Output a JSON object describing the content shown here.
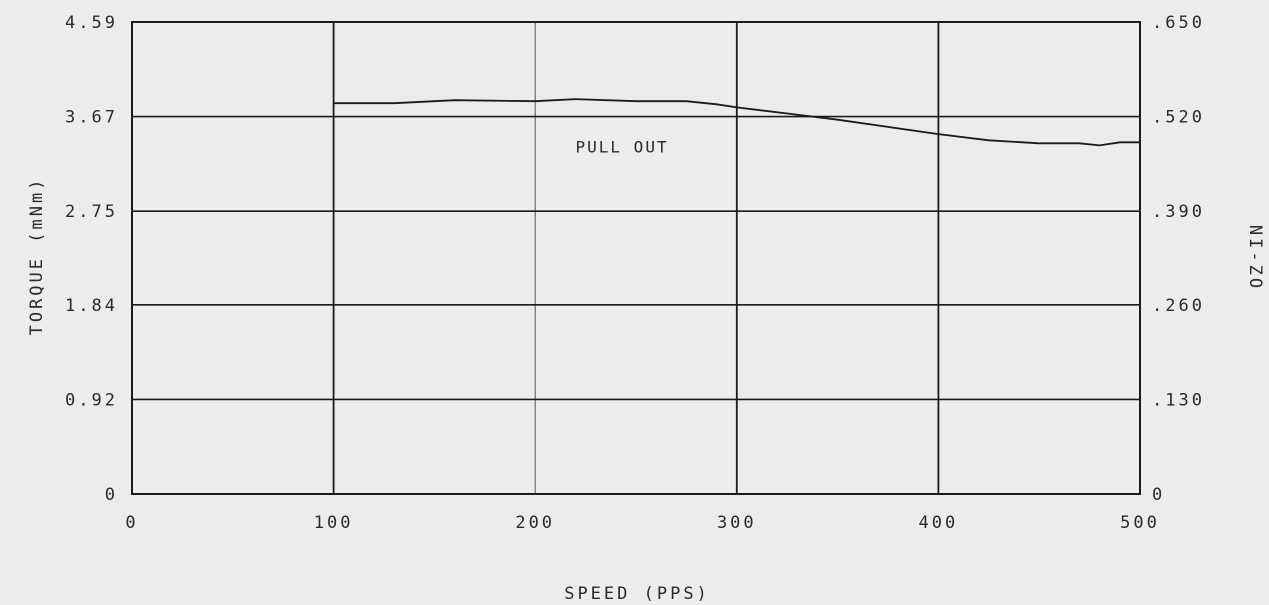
{
  "chart_data": {
    "type": "line",
    "xlabel": "SPEED (PPS)",
    "ylabel": "TORQUE (mNm)",
    "y2label": "NI-ZO",
    "xlim": [
      0,
      500
    ],
    "ylim": [
      0,
      4.59
    ],
    "y2lim": [
      0,
      0.65
    ],
    "x_ticks": [
      "0",
      "100",
      "200",
      "300",
      "400",
      "500"
    ],
    "x_tick_values": [
      0,
      100,
      200,
      300,
      400,
      500
    ],
    "y_ticks": [
      "0",
      "0.92",
      "1.84",
      "2.75",
      "3.67",
      "4.59"
    ],
    "y_tick_values": [
      0,
      0.92,
      1.84,
      2.75,
      3.67,
      4.59
    ],
    "y2_ticks": [
      "0",
      ".130",
      ".260",
      ".390",
      ".520",
      ".650"
    ],
    "grid": true,
    "annotations": [
      {
        "text": "PULL OUT",
        "x": 220,
        "y": 3.38
      }
    ],
    "series": [
      {
        "name": "PULL OUT",
        "x": [
          100,
          130,
          160,
          200,
          220,
          250,
          275,
          290,
          300,
          325,
          350,
          375,
          400,
          425,
          450,
          470,
          480,
          490,
          500
        ],
        "y": [
          3.8,
          3.8,
          3.83,
          3.82,
          3.84,
          3.82,
          3.82,
          3.79,
          3.76,
          3.7,
          3.64,
          3.57,
          3.5,
          3.44,
          3.41,
          3.41,
          3.39,
          3.42,
          3.42
        ]
      }
    ]
  }
}
